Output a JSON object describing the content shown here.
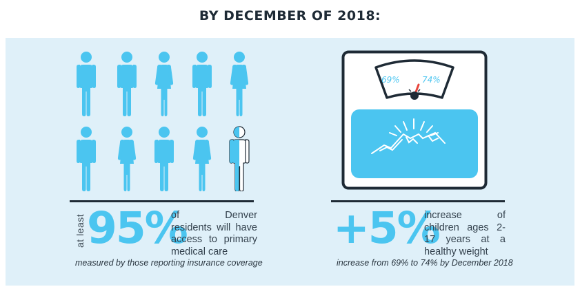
{
  "title": "BY DECEMBER OF 2018:",
  "left_stat": {
    "prefix": "at least",
    "value": "95%",
    "description": "of Denver residents will have access to primary medical care",
    "note": "measured by those reporting insurance coverage"
  },
  "right_stat": {
    "value": "+5%",
    "description": "increase of children ages 2-17 years at a healthy weight",
    "note": "increase from 69% to 74% by December 2018"
  },
  "scale": {
    "from_label": "69%",
    "to_label": "74%"
  },
  "people": [
    {
      "gender": "male",
      "fill": 1
    },
    {
      "gender": "male",
      "fill": 1
    },
    {
      "gender": "female",
      "fill": 1
    },
    {
      "gender": "male",
      "fill": 1
    },
    {
      "gender": "female",
      "fill": 1
    },
    {
      "gender": "male",
      "fill": 1
    },
    {
      "gender": "female",
      "fill": 1
    },
    {
      "gender": "male",
      "fill": 1
    },
    {
      "gender": "female",
      "fill": 1
    },
    {
      "gender": "male",
      "fill": 0.5
    }
  ],
  "colors": {
    "accent": "#4bc5f0",
    "dark": "#1e2a35",
    "panel": "#dff0f9",
    "needle": "#e8453c"
  }
}
